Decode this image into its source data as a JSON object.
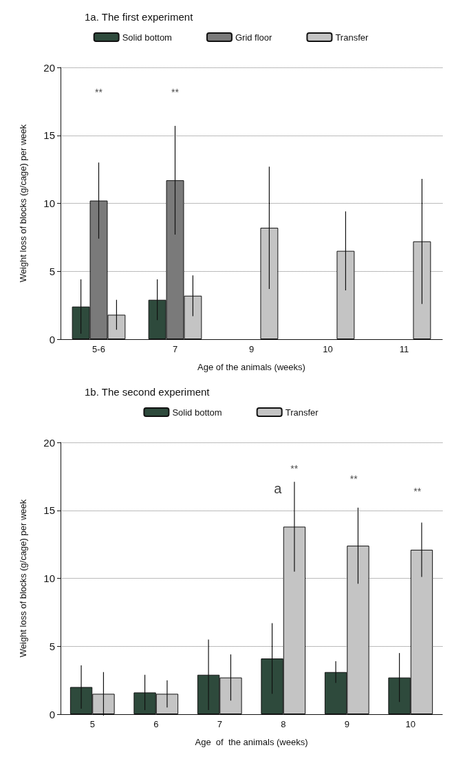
{
  "chart_data": [
    {
      "type": "bar",
      "title": "1a. The first experiment",
      "xlabel": "Age of the animals (weeks)",
      "ylabel": "Weight loss of blocks (g/cage) per week",
      "categories": [
        "5-6",
        "7",
        "9",
        "10",
        "11"
      ],
      "series": [
        {
          "name": "Solid bottom",
          "color": "#2e4a3c",
          "values": [
            2.4,
            2.9,
            null,
            null,
            null
          ],
          "errors": [
            2.0,
            1.5,
            null,
            null,
            null
          ]
        },
        {
          "name": "Grid floor",
          "color": "#7a7a7a",
          "values": [
            10.2,
            11.7,
            null,
            null,
            null
          ],
          "errors": [
            2.8,
            4.0,
            null,
            null,
            null
          ]
        },
        {
          "name": "Transfer",
          "color": "#c4c4c4",
          "values": [
            1.8,
            3.2,
            8.2,
            6.5,
            7.2
          ],
          "errors": [
            1.1,
            1.5,
            4.5,
            2.9,
            4.6
          ]
        }
      ],
      "annotations": [
        "**",
        "**"
      ],
      "ylim": [
        0,
        20
      ],
      "yticks": [
        0,
        5,
        10,
        15,
        20
      ],
      "grid": "y",
      "legend": "top"
    },
    {
      "type": "bar",
      "title": "1b. The second experiment",
      "xlabel": "Age  of  the animals (weeks)",
      "ylabel": "Weight loss of blocks (g/cage) per week",
      "categories": [
        "5",
        "6",
        "7",
        "8",
        "9",
        "10"
      ],
      "series": [
        {
          "name": "Solid bottom",
          "color": "#2e4a3c",
          "values": [
            2.0,
            1.6,
            2.9,
            4.1,
            3.1,
            2.7
          ],
          "errors": [
            1.6,
            1.3,
            2.6,
            2.6,
            0.8,
            1.8
          ]
        },
        {
          "name": "Transfer",
          "color": "#c4c4c4",
          "values": [
            1.5,
            1.5,
            2.7,
            13.8,
            12.4,
            12.1
          ],
          "errors": [
            1.6,
            1.0,
            1.7,
            3.3,
            2.8,
            2.0
          ]
        }
      ],
      "annotations": [
        "a",
        "**",
        "**",
        "**"
      ],
      "ylim": [
        0,
        20
      ],
      "yticks": [
        0,
        5,
        10,
        15,
        20
      ],
      "grid": "y",
      "legend": "top"
    }
  ]
}
